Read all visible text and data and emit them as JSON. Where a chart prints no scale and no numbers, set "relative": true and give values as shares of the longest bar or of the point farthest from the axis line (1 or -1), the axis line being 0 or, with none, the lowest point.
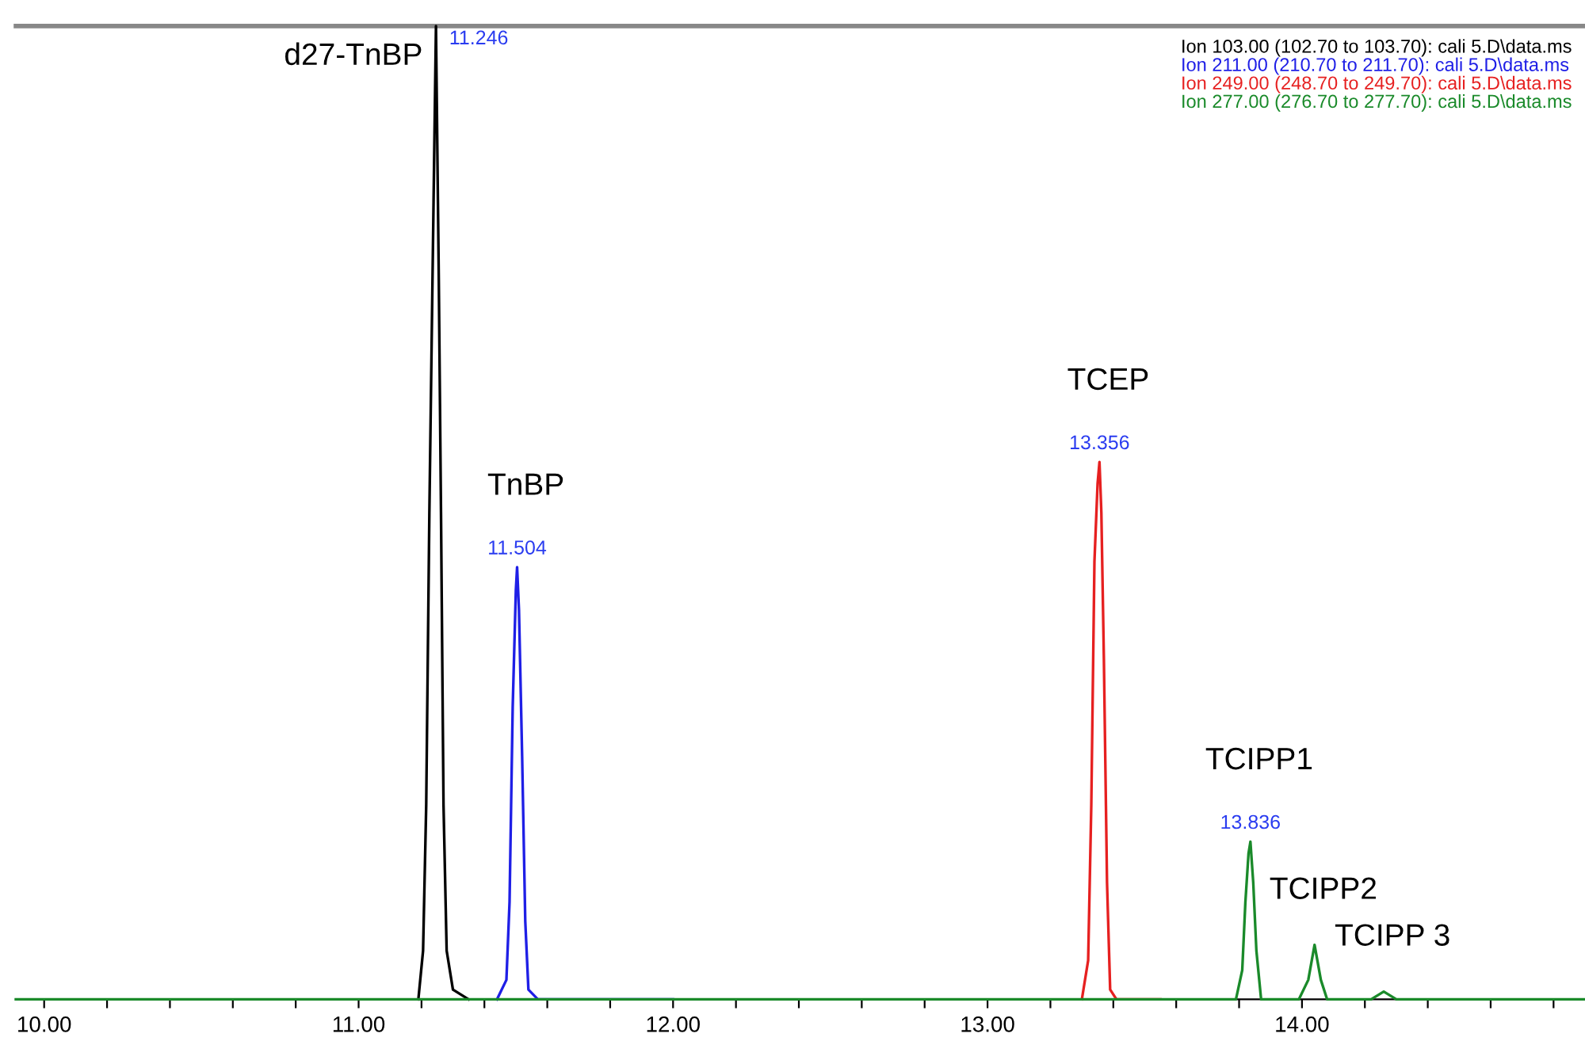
{
  "chart_data": {
    "type": "line",
    "relative": true,
    "legend": "top right",
    "grid": false,
    "marker": "none",
    "line_style": "solid",
    "xlim": [
      9.91,
      14.9
    ],
    "xticks": [
      {
        "value": 10.0,
        "label": "10.00"
      },
      {
        "value": 10.2,
        "label": null
      },
      {
        "value": 10.4,
        "label": null
      },
      {
        "value": 10.6,
        "label": null
      },
      {
        "value": 10.8,
        "label": null
      },
      {
        "value": 11.0,
        "label": "11.00"
      },
      {
        "value": 11.2,
        "label": null
      },
      {
        "value": 11.4,
        "label": null
      },
      {
        "value": 11.6,
        "label": null
      },
      {
        "value": 11.8,
        "label": null
      },
      {
        "value": 12.0,
        "label": "12.00"
      },
      {
        "value": 12.2,
        "label": null
      },
      {
        "value": 12.4,
        "label": null
      },
      {
        "value": 12.6,
        "label": null
      },
      {
        "value": 12.8,
        "label": null
      },
      {
        "value": 13.0,
        "label": "13.00"
      },
      {
        "value": 13.2,
        "label": null
      },
      {
        "value": 13.4,
        "label": null
      },
      {
        "value": 13.6,
        "label": null
      },
      {
        "value": 13.8,
        "label": null
      },
      {
        "value": 14.0,
        "label": "14.00"
      },
      {
        "value": 14.2,
        "label": null
      },
      {
        "value": 14.4,
        "label": null
      },
      {
        "value": 14.6,
        "label": null
      },
      {
        "value": 14.8,
        "label": null
      }
    ],
    "series": [
      {
        "name": "Ion 103.00 (102.70 to 103.70): cali 5.D\\data.ms",
        "color": "#000000",
        "x": [
          11.19,
          11.205,
          11.215,
          11.225,
          11.235,
          11.246,
          11.255,
          11.262,
          11.27,
          11.28,
          11.3,
          11.35
        ],
        "values": [
          0,
          0.05,
          0.2,
          0.5,
          0.74,
          1.0,
          0.74,
          0.5,
          0.2,
          0.05,
          0.01,
          0
        ]
      },
      {
        "name": "Ion 211.00 (210.70 to 211.70): cali 5.D\\data.ms",
        "color": "#1f1fe6",
        "x": [
          11.44,
          11.47,
          11.48,
          11.49,
          11.5,
          11.504,
          11.51,
          11.52,
          11.53,
          11.54,
          11.57,
          12.0
        ],
        "values": [
          0,
          0.02,
          0.1,
          0.3,
          0.42,
          0.444,
          0.4,
          0.25,
          0.08,
          0.01,
          0,
          0
        ]
      },
      {
        "name": "Ion 249.00 (248.70 to 249.70): cali 5.D\\data.ms",
        "color": "#e62020",
        "x": [
          13.3,
          13.32,
          13.33,
          13.34,
          13.35,
          13.356,
          13.362,
          13.37,
          13.38,
          13.39,
          13.41,
          13.55
        ],
        "values": [
          0,
          0.04,
          0.2,
          0.45,
          0.53,
          0.552,
          0.5,
          0.35,
          0.12,
          0.01,
          0,
          0
        ]
      },
      {
        "name": "Ion 277.00 (276.70 to 277.70): cali 5.D\\data.ms",
        "color": "#1a8a2a",
        "x": [
          9.91,
          13.79,
          13.81,
          13.82,
          13.83,
          13.836,
          13.845,
          13.855,
          13.87,
          13.99,
          14.02,
          14.04,
          14.06,
          14.08,
          14.22,
          14.26,
          14.3,
          14.9
        ],
        "values": [
          0,
          0,
          0.03,
          0.1,
          0.15,
          0.162,
          0.12,
          0.05,
          0,
          0,
          0.02,
          0.056,
          0.02,
          0,
          0,
          0.008,
          0,
          0
        ]
      }
    ],
    "annotations": [
      {
        "text": "11.246",
        "x": 11.246,
        "y": 1.0
      },
      {
        "text": "d27-TnBP",
        "x": 11.246,
        "y": 1.0
      },
      {
        "text": "11.504",
        "x": 11.504,
        "y": 0.444
      },
      {
        "text": "TnBP",
        "x": 11.504,
        "y": 0.444
      },
      {
        "text": "13.356",
        "x": 13.356,
        "y": 0.552
      },
      {
        "text": "TCEP",
        "x": 13.356,
        "y": 0.552
      },
      {
        "text": "13.836",
        "x": 13.836,
        "y": 0.162
      },
      {
        "text": "TCIPP1",
        "x": 13.836,
        "y": 0.162
      },
      {
        "text": "TCIPP2",
        "x": 14.04,
        "y": 0.056
      },
      {
        "text": "TCIPP 3",
        "x": 14.26,
        "y": 0.008
      }
    ]
  }
}
